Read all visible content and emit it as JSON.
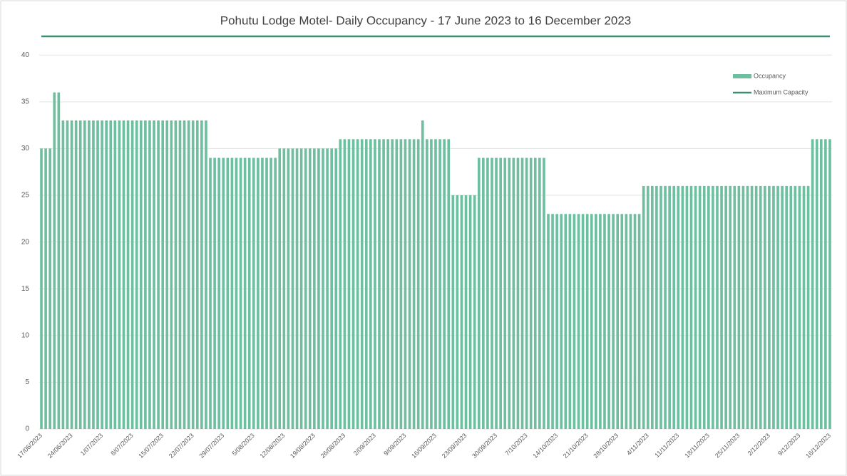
{
  "chart_data": {
    "type": "bar",
    "title": "Pohutu Lodge Motel- Daily Occupancy - 17 June 2023 to 16 December 2023",
    "categories": [
      "17/06/2023",
      null,
      null,
      null,
      null,
      null,
      null,
      "24/06/2023",
      null,
      null,
      null,
      null,
      null,
      null,
      "1/07/2023",
      null,
      null,
      null,
      null,
      null,
      null,
      "8/07/2023",
      null,
      null,
      null,
      null,
      null,
      null,
      "15/07/2023",
      null,
      null,
      null,
      null,
      null,
      null,
      "22/07/2023",
      null,
      null,
      null,
      null,
      null,
      null,
      "29/07/2023",
      null,
      null,
      null,
      null,
      null,
      null,
      "5/08/2023",
      null,
      null,
      null,
      null,
      null,
      null,
      "12/08/2023",
      null,
      null,
      null,
      null,
      null,
      null,
      "19/08/2023",
      null,
      null,
      null,
      null,
      null,
      null,
      "26/08/2023",
      null,
      null,
      null,
      null,
      null,
      null,
      "2/09/2023",
      null,
      null,
      null,
      null,
      null,
      null,
      "9/09/2023",
      null,
      null,
      null,
      null,
      null,
      null,
      "16/09/2023",
      null,
      null,
      null,
      null,
      null,
      null,
      "23/09/2023",
      null,
      null,
      null,
      null,
      null,
      null,
      "30/09/2023",
      null,
      null,
      null,
      null,
      null,
      null,
      "7/10/2023",
      null,
      null,
      null,
      null,
      null,
      null,
      "14/10/2023",
      null,
      null,
      null,
      null,
      null,
      null,
      "21/10/2023",
      null,
      null,
      null,
      null,
      null,
      null,
      "28/10/2023",
      null,
      null,
      null,
      null,
      null,
      null,
      "4/11/2023",
      null,
      null,
      null,
      null,
      null,
      null,
      "11/11/2023",
      null,
      null,
      null,
      null,
      null,
      null,
      "18/11/2023",
      null,
      null,
      null,
      null,
      null,
      null,
      "25/11/2023",
      null,
      null,
      null,
      null,
      null,
      null,
      "2/12/2023",
      null,
      null,
      null,
      null,
      null,
      null,
      "9/12/2023",
      null,
      null,
      null,
      null,
      null,
      null,
      "16/12/2023"
    ],
    "series": [
      {
        "name": "Occupancy",
        "type": "bar",
        "color": "#6dbf9f",
        "values": [
          30,
          30,
          30,
          36,
          36,
          33,
          33,
          33,
          33,
          33,
          33,
          33,
          33,
          33,
          33,
          33,
          33,
          33,
          33,
          33,
          33,
          33,
          33,
          33,
          33,
          33,
          33,
          33,
          33,
          33,
          33,
          33,
          33,
          33,
          33,
          33,
          33,
          33,
          33,
          29,
          29,
          29,
          29,
          29,
          29,
          29,
          29,
          29,
          29,
          29,
          29,
          29,
          29,
          29,
          29,
          30,
          30,
          30,
          30,
          30,
          30,
          30,
          30,
          30,
          30,
          30,
          30,
          30,
          30,
          31,
          31,
          31,
          31,
          31,
          31,
          31,
          31,
          31,
          31,
          31,
          31,
          31,
          31,
          31,
          31,
          31,
          31,
          31,
          33,
          31,
          31,
          31,
          31,
          31,
          31,
          25,
          25,
          25,
          25,
          25,
          25,
          29,
          29,
          29,
          29,
          29,
          29,
          29,
          29,
          29,
          29,
          29,
          29,
          29,
          29,
          29,
          29,
          23,
          23,
          23,
          23,
          23,
          23,
          23,
          23,
          23,
          23,
          23,
          23,
          23,
          23,
          23,
          23,
          23,
          23,
          23,
          23,
          23,
          23,
          26,
          26,
          26,
          26,
          26,
          26,
          26,
          26,
          26,
          26,
          26,
          26,
          26,
          26,
          26,
          26,
          26,
          26,
          26,
          26,
          26,
          26,
          26,
          26,
          26,
          26,
          26,
          26,
          26,
          26,
          26,
          26,
          26,
          26,
          26,
          26,
          26,
          26,
          26,
          31,
          31,
          31,
          31,
          31
        ]
      },
      {
        "name": "Maximum Capacity",
        "type": "line",
        "color": "#3b8f6f",
        "values": [
          42,
          42,
          42,
          42,
          42,
          42,
          42,
          42,
          42,
          42,
          42,
          42,
          42,
          42,
          42,
          42,
          42,
          42,
          42,
          42,
          42,
          42,
          42,
          42,
          42,
          42,
          42,
          42,
          42,
          42,
          42,
          42,
          42,
          42,
          42,
          42,
          42,
          42,
          42,
          42,
          42,
          42,
          42,
          42,
          42,
          42,
          42,
          42,
          42,
          42,
          42,
          42,
          42,
          42,
          42,
          42,
          42,
          42,
          42,
          42,
          42,
          42,
          42,
          42,
          42,
          42,
          42,
          42,
          42,
          42,
          42,
          42,
          42,
          42,
          42,
          42,
          42,
          42,
          42,
          42,
          42,
          42,
          42,
          42,
          42,
          42,
          42,
          42,
          42,
          42,
          42,
          42,
          42,
          42,
          42,
          42,
          42,
          42,
          42,
          42,
          42,
          42,
          42,
          42,
          42,
          42,
          42,
          42,
          42,
          42,
          42,
          42,
          42,
          42,
          42,
          42,
          42,
          42,
          42,
          42,
          42,
          42,
          42,
          42,
          42,
          42,
          42,
          42,
          42,
          42,
          42,
          42,
          42,
          42,
          42,
          42,
          42,
          42,
          42,
          42,
          42,
          42,
          42,
          42,
          42,
          42,
          42,
          42,
          42,
          42,
          42,
          42,
          42,
          42,
          42,
          42,
          42,
          42,
          42,
          42,
          42,
          42,
          42,
          42,
          42,
          42,
          42,
          42,
          42,
          42,
          42,
          42,
          42,
          42,
          42,
          42,
          42,
          42,
          42,
          42,
          42,
          42,
          42
        ]
      }
    ],
    "ylim": [
      0,
      42
    ],
    "yticks": [
      0,
      5,
      10,
      15,
      20,
      25,
      30,
      35,
      40
    ],
    "grid": true,
    "legend": "top-right"
  }
}
